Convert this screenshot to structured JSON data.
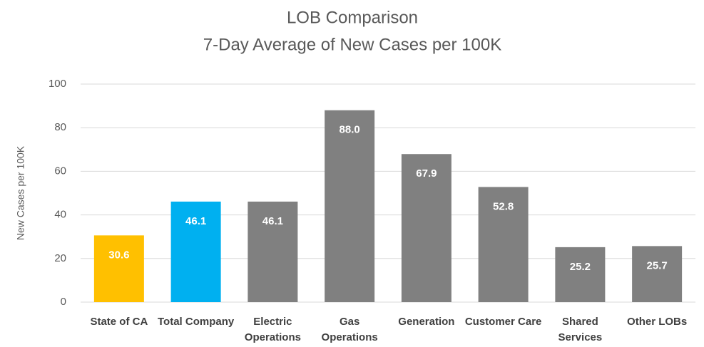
{
  "chart_data": {
    "type": "bar",
    "title": "LOB Comparison",
    "subtitle": "7-Day Average of New Cases per 100K",
    "y_label": "New Cases per 100K",
    "categories": [
      "State of CA",
      "Total Company",
      "Electric Operations",
      "Gas Operations",
      "Generation",
      "Customer Care",
      "Shared Services",
      "Other LOBs"
    ],
    "values": [
      30.6,
      46.1,
      46.1,
      88.0,
      67.9,
      52.8,
      25.2,
      25.7
    ],
    "value_labels": [
      "30.6",
      "46.1",
      "46.1",
      "88.0",
      "67.9",
      "52.8",
      "25.2",
      "25.7"
    ],
    "colors": [
      "#ffc000",
      "#00b0f0",
      "#808080",
      "#808080",
      "#808080",
      "#808080",
      "#808080",
      "#808080"
    ],
    "ylim": [
      0,
      100
    ],
    "yticks": [
      0,
      20,
      40,
      60,
      80,
      100
    ],
    "grid": true
  }
}
